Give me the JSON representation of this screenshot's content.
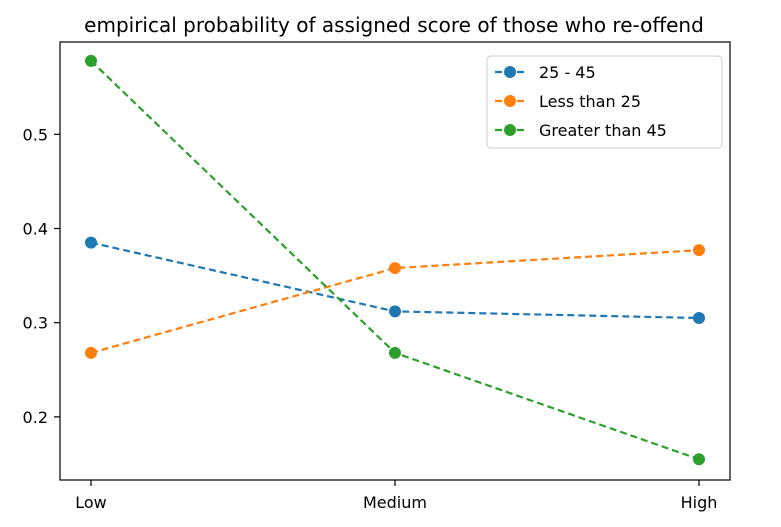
{
  "chart_data": {
    "type": "line",
    "title": "empirical probability of assigned score of those who re-offend",
    "xlabel": "",
    "ylabel": "",
    "categories": [
      "Low",
      "Medium",
      "High"
    ],
    "ylim": [
      0.133,
      0.598
    ],
    "yticks": [
      0.2,
      0.3,
      0.4,
      0.5
    ],
    "ytick_labels": [
      "0.2",
      "0.3",
      "0.4",
      "0.5"
    ],
    "grid": false,
    "legend_position": "top-right",
    "line_style": "dashed",
    "marker": "circle",
    "series": [
      {
        "name": "25 - 45",
        "color": "#1f77b4",
        "values": [
          0.385,
          0.312,
          0.305
        ]
      },
      {
        "name": "Less than 25",
        "color": "#ff7f0e",
        "values": [
          0.268,
          0.358,
          0.377
        ]
      },
      {
        "name": "Greater than 45",
        "color": "#2ca02c",
        "values": [
          0.578,
          0.268,
          0.155
        ]
      }
    ]
  }
}
